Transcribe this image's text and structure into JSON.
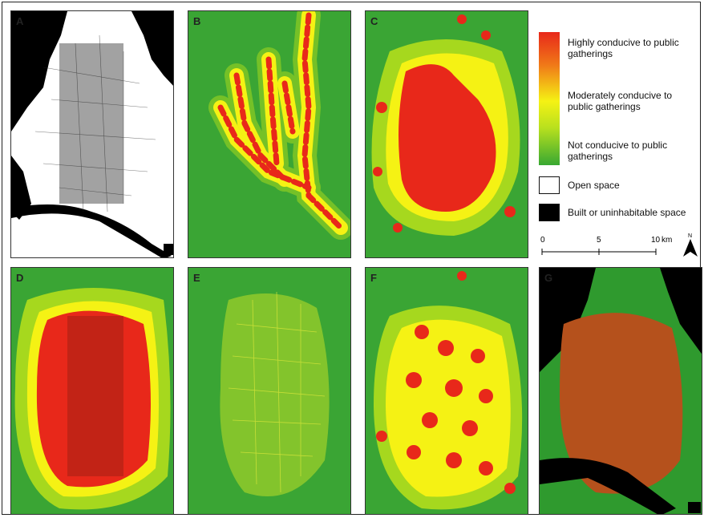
{
  "panels": [
    {
      "id": "A",
      "label": "A"
    },
    {
      "id": "B",
      "label": "B"
    },
    {
      "id": "C",
      "label": "C"
    },
    {
      "id": "D",
      "label": "D"
    },
    {
      "id": "E",
      "label": "E"
    },
    {
      "id": "F",
      "label": "F"
    },
    {
      "id": "G",
      "label": "G"
    }
  ],
  "legend": {
    "high": "Highly conducive to public gatherings",
    "moderate": "Moderately conducive to public gatherings",
    "not": "Not conducive to public gatherings",
    "open_space": "Open space",
    "built": "Built or uninhabitable space"
  },
  "scale_bar": {
    "t0": "0",
    "t1": "5",
    "t2": "10",
    "unit": "km"
  },
  "colors": {
    "high": "#e8281a",
    "mid": "#f5f214",
    "low": "#38a832",
    "built": "#000000",
    "open": "#ffffff"
  }
}
